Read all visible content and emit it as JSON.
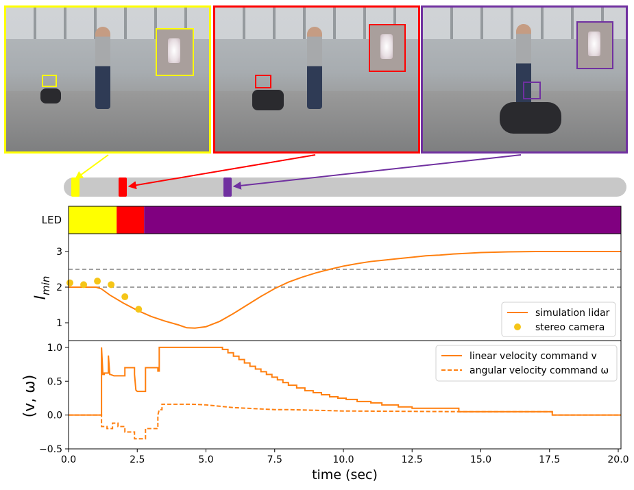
{
  "colors": {
    "yellow": "#ffff00",
    "red": "#ff0000",
    "purple": "#800080",
    "purple_frame": "#7030a0",
    "orange": "#ff7f0e",
    "gold": "#f5c518",
    "timeline": "#c8c8c8"
  },
  "photos": [
    {
      "name": "photo-yellow-led",
      "color": "#ffff00"
    },
    {
      "name": "photo-red-led",
      "color": "#ff0000"
    },
    {
      "name": "photo-purple-led",
      "color": "#7030a0"
    }
  ],
  "chart_data": [
    {
      "type": "heatmap",
      "ylabel": "LED",
      "xlim": [
        0,
        20.1
      ],
      "segments": [
        {
          "start": 0.0,
          "end": 1.75,
          "color": "#ffff00"
        },
        {
          "start": 1.75,
          "end": 2.75,
          "color": "#ff0000"
        },
        {
          "start": 2.75,
          "end": 20.1,
          "color": "#800080"
        }
      ]
    },
    {
      "type": "line",
      "ylabel": "I_min",
      "xlim": [
        0,
        20.1
      ],
      "ylim": [
        0.5,
        3.5
      ],
      "yticks": [
        "1",
        "2",
        "3"
      ],
      "hlines": [
        2.0,
        2.5
      ],
      "legend_position": "lower-right",
      "series": [
        {
          "name": "simulation lidar",
          "kind": "line",
          "color": "#ff7f0e",
          "x": [
            0,
            1.0,
            1.2,
            1.5,
            2.0,
            2.5,
            3.0,
            3.5,
            4.0,
            4.3,
            4.6,
            5.0,
            5.5,
            6.0,
            6.5,
            7.0,
            7.5,
            8.0,
            8.5,
            9.0,
            9.5,
            10.0,
            10.5,
            11.0,
            11.5,
            12.0,
            12.5,
            13.0,
            13.5,
            14.0,
            14.5,
            15.0,
            16.0,
            17.0,
            18.0,
            19.0,
            20.1
          ],
          "y": [
            2.0,
            2.0,
            1.95,
            1.78,
            1.55,
            1.35,
            1.18,
            1.05,
            0.94,
            0.86,
            0.85,
            0.89,
            1.04,
            1.26,
            1.5,
            1.74,
            1.96,
            2.14,
            2.28,
            2.4,
            2.5,
            2.59,
            2.66,
            2.72,
            2.76,
            2.8,
            2.84,
            2.88,
            2.9,
            2.93,
            2.95,
            2.97,
            2.99,
            3.0,
            3.0,
            3.0,
            3.0
          ]
        },
        {
          "name": "stereo camera",
          "kind": "scatter",
          "color": "#f5c518",
          "x": [
            0.05,
            0.55,
            1.05,
            1.55,
            2.05,
            2.55
          ],
          "y": [
            2.12,
            2.07,
            2.17,
            2.07,
            1.73,
            1.38
          ]
        }
      ]
    },
    {
      "type": "line",
      "ylabel": "(v, ω)",
      "xlabel": "time (sec)",
      "xlim": [
        0,
        20.1
      ],
      "ylim": [
        -0.5,
        1.1
      ],
      "xticks": [
        "0.0",
        "2.5",
        "5.0",
        "7.5",
        "10.0",
        "12.5",
        "15.0",
        "17.5",
        "20.0"
      ],
      "yticks": [
        "−0.5",
        "0.0",
        "0.5",
        "1.0"
      ],
      "legend_position": "upper-right",
      "series": [
        {
          "name": "linear velocity command v",
          "dash": "solid",
          "color": "#ff7f0e",
          "x": [
            0,
            1.2,
            1.2,
            1.25,
            1.3,
            1.3,
            1.45,
            1.45,
            1.5,
            1.52,
            1.52,
            1.65,
            2.05,
            2.05,
            2.4,
            2.4,
            2.45,
            2.5,
            2.5,
            2.8,
            2.8,
            3.25,
            3.25,
            3.3,
            3.3,
            5.6,
            5.6,
            5.8,
            5.8,
            6.0,
            6.0,
            6.2,
            6.2,
            6.4,
            6.4,
            6.6,
            6.6,
            6.8,
            6.8,
            7.0,
            7.0,
            7.2,
            7.2,
            7.4,
            7.4,
            7.6,
            7.6,
            7.8,
            7.8,
            8.0,
            8.0,
            8.3,
            8.3,
            8.6,
            8.6,
            8.9,
            8.9,
            9.2,
            9.2,
            9.5,
            9.5,
            9.8,
            9.8,
            10.1,
            10.1,
            10.5,
            10.5,
            11.0,
            11.0,
            11.4,
            11.4,
            12.0,
            12.0,
            12.5,
            12.5,
            14.2,
            14.2,
            17.6,
            17.6,
            20.1
          ],
          "y": [
            0,
            0,
            1.0,
            0.6,
            0.6,
            0.62,
            0.62,
            0.88,
            0.6,
            0.6,
            0.6,
            0.58,
            0.58,
            0.7,
            0.7,
            0.6,
            0.37,
            0.35,
            0.35,
            0.35,
            0.7,
            0.7,
            0.65,
            0.65,
            1.0,
            1.0,
            0.97,
            0.97,
            0.92,
            0.92,
            0.87,
            0.87,
            0.82,
            0.82,
            0.77,
            0.77,
            0.72,
            0.72,
            0.68,
            0.68,
            0.64,
            0.64,
            0.6,
            0.6,
            0.56,
            0.56,
            0.52,
            0.52,
            0.48,
            0.48,
            0.44,
            0.44,
            0.4,
            0.4,
            0.36,
            0.36,
            0.33,
            0.33,
            0.3,
            0.3,
            0.27,
            0.27,
            0.25,
            0.25,
            0.23,
            0.23,
            0.2,
            0.2,
            0.18,
            0.18,
            0.15,
            0.15,
            0.12,
            0.12,
            0.1,
            0.1,
            0.05,
            0.05,
            0,
            0
          ]
        },
        {
          "name": "angular velocity command ω",
          "dash": "dashed",
          "color": "#ff7f0e",
          "x": [
            0,
            1.2,
            1.2,
            1.4,
            1.4,
            1.6,
            1.6,
            1.8,
            1.8,
            2.05,
            2.05,
            2.4,
            2.4,
            2.8,
            2.8,
            3.25,
            3.25,
            3.3,
            3.4,
            3.4,
            4.0,
            4.5,
            5.0,
            5.5,
            6.0,
            6.5,
            7.0,
            7.5,
            8.0,
            10.0,
            14.2,
            14.2,
            17.6,
            17.6,
            20.1
          ],
          "y": [
            0,
            0,
            -0.17,
            -0.17,
            -0.2,
            -0.2,
            -0.12,
            -0.12,
            -0.17,
            -0.17,
            -0.25,
            -0.25,
            -0.35,
            -0.35,
            -0.2,
            -0.2,
            0.0,
            0.08,
            0.08,
            0.16,
            0.16,
            0.16,
            0.15,
            0.13,
            0.11,
            0.1,
            0.09,
            0.08,
            0.08,
            0.06,
            0.05,
            0.05,
            0.05,
            0,
            0
          ]
        }
      ]
    }
  ]
}
